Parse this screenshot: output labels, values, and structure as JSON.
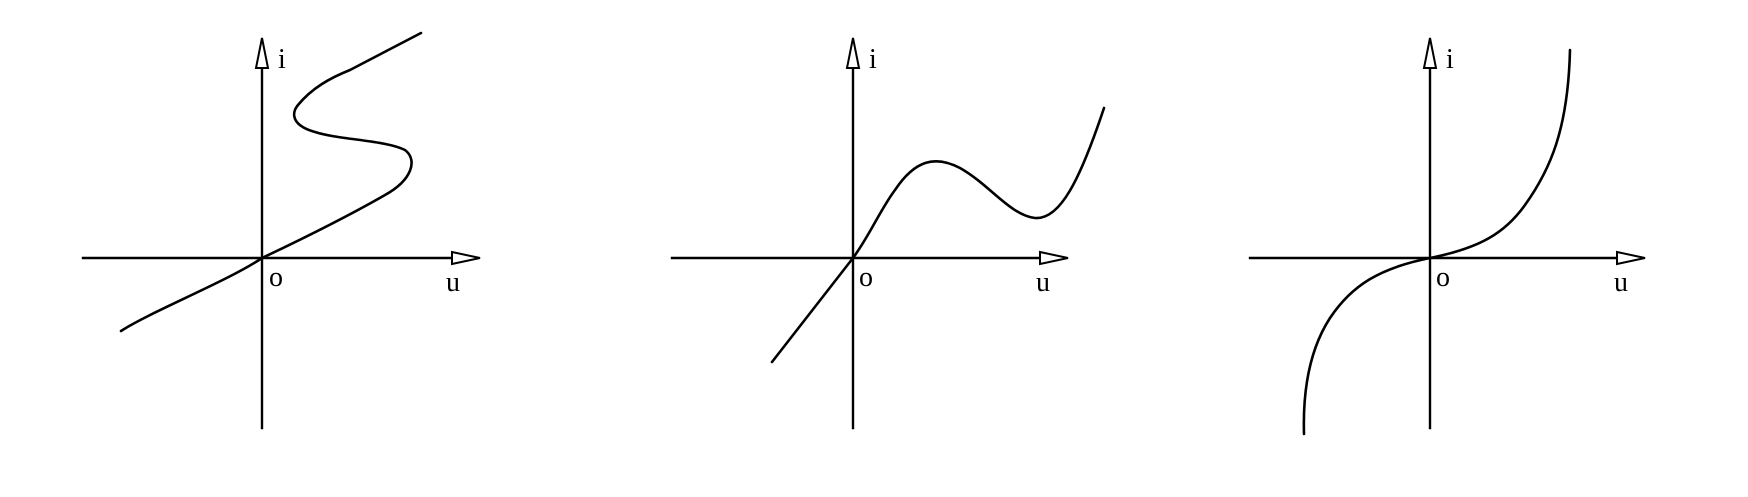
{
  "diagrams": [
    {
      "id": "s-type",
      "y_axis_label": "i",
      "x_axis_label": "u",
      "origin_label": "o"
    },
    {
      "id": "n-type",
      "y_axis_label": "i",
      "x_axis_label": "u",
      "origin_label": "o"
    },
    {
      "id": "monotonic",
      "y_axis_label": "i",
      "x_axis_label": "u",
      "origin_label": "o"
    }
  ]
}
